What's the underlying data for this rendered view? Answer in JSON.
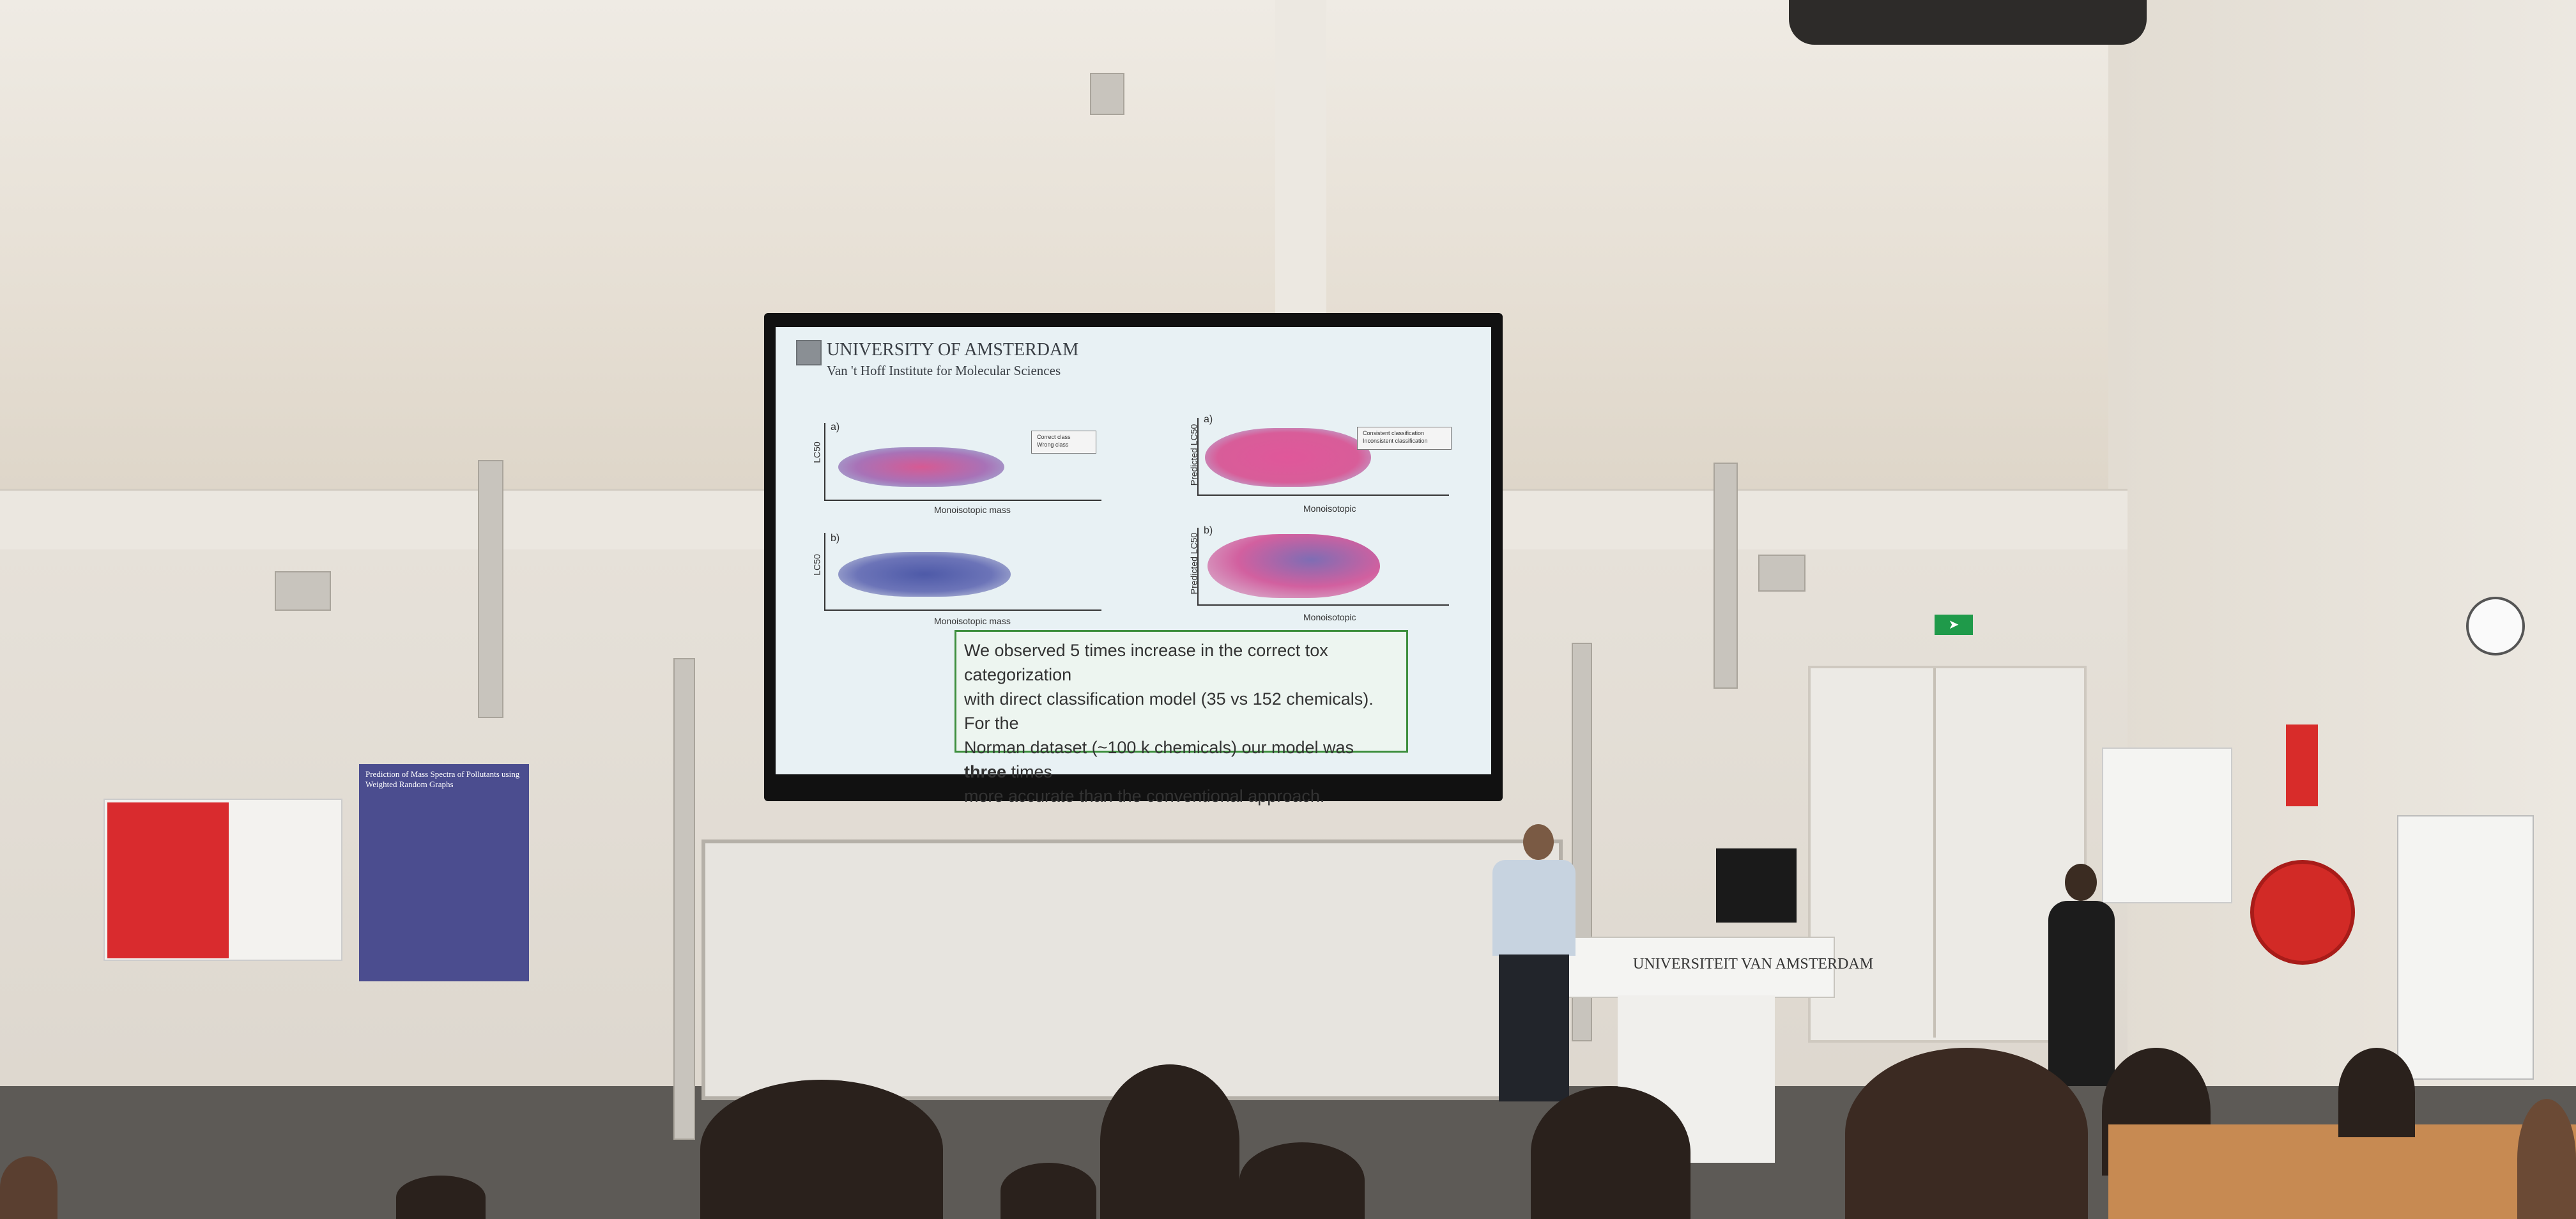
{
  "slide": {
    "university": "UNIVERSITY OF AMSTERDAM",
    "institute": "Van 't Hoff Institute for Molecular Sciences",
    "panel_a_left": "a)",
    "panel_b_left": "b)",
    "panel_a_right": "a)",
    "panel_b_right": "b)",
    "xlabel_left": "Monoisotopic mass",
    "ylabel_left": "LC50",
    "xlabel_right": "Monoisotopic",
    "ylabel_right": "Predicted LC50",
    "legend_left": [
      "Correct class",
      "Wrong class"
    ],
    "legend_right": [
      "Consistent classification",
      "Inconsistent classification"
    ],
    "text_line1": "We observed 5 times increase in the correct tox categorization",
    "text_line2": "with direct classification model (35 vs 152 chemicals). For the",
    "text_line3_a": "Norman dataset (~100 k chemicals) our model was ",
    "text_line3_bold": "three",
    "text_line3_b": " times",
    "text_line4": "more accurate than the conventional approach."
  },
  "podium": {
    "label": "UNIVERSITEIT VAN AMSTERDAM"
  },
  "posters": {
    "poster2_title": "Prediction of Mass Spectra of Pollutants using Weighted Random Graphs"
  },
  "colors": {
    "pink_points": "#d64f8a",
    "blue_points": "#5a58a8",
    "text_box_border": "#3e8f3e"
  }
}
